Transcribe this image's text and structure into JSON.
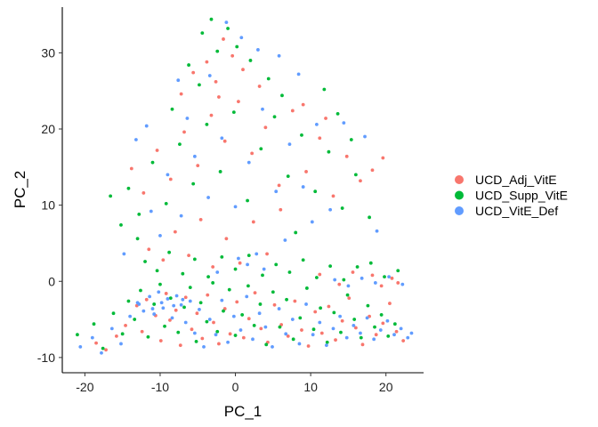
{
  "chart_data": {
    "type": "scatter",
    "xlabel": "PC_1",
    "ylabel": "PC_2",
    "xlim": [
      -23,
      25
    ],
    "ylim": [
      -12,
      36
    ],
    "xticks": [
      -20,
      -10,
      0,
      10,
      20
    ],
    "yticks": [
      -10,
      0,
      10,
      20,
      30
    ],
    "grid": false,
    "legend_position": "right",
    "series": [
      {
        "name": "UCD_Adj_VitE",
        "color": "#F8766D",
        "points": [
          [
            -18.5,
            -8.1
          ],
          [
            -17.2,
            -9.0
          ],
          [
            -15.8,
            -7.2
          ],
          [
            -14.6,
            -5.8
          ],
          [
            -13.1,
            -3.2
          ],
          [
            -12.4,
            -6.6
          ],
          [
            -11.8,
            -2.4
          ],
          [
            -10.6,
            -4.5
          ],
          [
            -9.9,
            -7.8
          ],
          [
            -9.2,
            -1.6
          ],
          [
            -8.7,
            -5.1
          ],
          [
            -7.9,
            -3.8
          ],
          [
            -7.3,
            -8.4
          ],
          [
            -6.6,
            -2.1
          ],
          [
            -5.8,
            -6.3
          ],
          [
            -5.1,
            -4.2
          ],
          [
            -4.4,
            -7.5
          ],
          [
            -3.7,
            -1.8
          ],
          [
            -2.9,
            -5.4
          ],
          [
            -2.2,
            -8.2
          ],
          [
            -1.4,
            -3.6
          ],
          [
            -0.7,
            -6.9
          ],
          [
            0.2,
            -2.7
          ],
          [
            1.1,
            -7.4
          ],
          [
            1.8,
            -4.9
          ],
          [
            2.6,
            -1.5
          ],
          [
            3.4,
            -6.2
          ],
          [
            4.3,
            -8.0
          ],
          [
            5.2,
            -3.1
          ],
          [
            6.1,
            -5.7
          ],
          [
            7.0,
            -7.2
          ],
          [
            7.9,
            -2.6
          ],
          [
            8.8,
            -6.4
          ],
          [
            9.7,
            -8.5
          ],
          [
            10.6,
            -4.0
          ],
          [
            11.5,
            -6.8
          ],
          [
            12.4,
            -3.3
          ],
          [
            13.3,
            -7.7
          ],
          [
            14.2,
            -5.2
          ],
          [
            15.1,
            -2.2
          ],
          [
            16.0,
            -6.1
          ],
          [
            16.9,
            -8.3
          ],
          [
            17.8,
            -4.6
          ],
          [
            18.7,
            -7.0
          ],
          [
            19.6,
            -5.5
          ],
          [
            20.5,
            -2.9
          ],
          [
            21.4,
            -6.6
          ],
          [
            22.3,
            -7.8
          ],
          [
            18.2,
            0.8
          ],
          [
            19.4,
            -0.6
          ],
          [
            20.8,
            0.4
          ],
          [
            21.6,
            -0.2
          ],
          [
            15.6,
            1.2
          ],
          [
            13.8,
            -0.4
          ],
          [
            11.2,
            0.9
          ],
          [
            -11.5,
            4.2
          ],
          [
            -9.6,
            2.8
          ],
          [
            -8.0,
            6.5
          ],
          [
            -6.2,
            3.4
          ],
          [
            -4.6,
            8.1
          ],
          [
            -3.0,
            1.9
          ],
          [
            -1.2,
            5.6
          ],
          [
            0.6,
            2.4
          ],
          [
            2.4,
            7.8
          ],
          [
            4.2,
            3.6
          ],
          [
            6.0,
            9.4
          ],
          [
            -13.8,
            14.8
          ],
          [
            -12.2,
            11.6
          ],
          [
            -10.4,
            17.2
          ],
          [
            -8.6,
            13.4
          ],
          [
            -6.8,
            19.6
          ],
          [
            -5.0,
            15.2
          ],
          [
            -3.2,
            21.8
          ],
          [
            -1.4,
            18.4
          ],
          [
            0.4,
            23.6
          ],
          [
            2.2,
            16.8
          ],
          [
            4.0,
            20.2
          ],
          [
            5.8,
            12.6
          ],
          [
            7.6,
            22.4
          ],
          [
            9.4,
            14.4
          ],
          [
            11.2,
            18.8
          ],
          [
            13.0,
            11.2
          ],
          [
            14.8,
            16.4
          ],
          [
            16.6,
            13.2
          ],
          [
            -5.6,
            27.4
          ],
          [
            -3.8,
            28.8
          ],
          [
            -2.6,
            26.2
          ],
          [
            -1.6,
            31.8
          ],
          [
            -0.4,
            29.6
          ],
          [
            1.0,
            27.8
          ],
          [
            -7.2,
            24.6
          ],
          [
            -2.2,
            24.2
          ],
          [
            3.2,
            25.6
          ],
          [
            9.0,
            23.2
          ],
          [
            12.0,
            21.4
          ],
          [
            18.2,
            14.6
          ],
          [
            19.6,
            16.2
          ]
        ]
      },
      {
        "name": "UCD_Supp_VitE",
        "color": "#00BA38",
        "points": [
          [
            -21.0,
            -7.0
          ],
          [
            -18.8,
            -5.6
          ],
          [
            -17.6,
            -8.8
          ],
          [
            -16.2,
            -4.2
          ],
          [
            -15.0,
            -6.9
          ],
          [
            -14.2,
            -2.6
          ],
          [
            -13.4,
            -5.0
          ],
          [
            -12.6,
            -1.2
          ],
          [
            -11.6,
            -7.3
          ],
          [
            -10.8,
            -3.0
          ],
          [
            -10.0,
            -0.4
          ],
          [
            -9.4,
            -5.9
          ],
          [
            -8.6,
            -2.2
          ],
          [
            -7.6,
            -6.7
          ],
          [
            -6.8,
            -3.4
          ],
          [
            -6.0,
            -0.8
          ],
          [
            -5.2,
            -7.9
          ],
          [
            -4.6,
            -2.8
          ],
          [
            -3.8,
            -5.3
          ],
          [
            -3.0,
            -0.2
          ],
          [
            -2.4,
            -6.6
          ],
          [
            -1.6,
            -3.9
          ],
          [
            -0.8,
            -1.1
          ],
          [
            0.0,
            -7.1
          ],
          [
            0.9,
            -4.4
          ],
          [
            1.7,
            -0.6
          ],
          [
            2.5,
            -5.8
          ],
          [
            3.3,
            -3.0
          ],
          [
            4.1,
            -8.3
          ],
          [
            5.0,
            -1.4
          ],
          [
            5.9,
            -6.0
          ],
          [
            6.8,
            -2.4
          ],
          [
            7.7,
            -7.6
          ],
          [
            8.6,
            -4.8
          ],
          [
            9.5,
            -0.9
          ],
          [
            10.4,
            -6.3
          ],
          [
            11.3,
            -3.5
          ],
          [
            12.2,
            -8.0
          ],
          [
            13.1,
            -4.1
          ],
          [
            14.0,
            -6.7
          ],
          [
            14.9,
            -1.8
          ],
          [
            15.8,
            -5.0
          ],
          [
            16.7,
            -7.4
          ],
          [
            17.6,
            -3.2
          ],
          [
            18.5,
            -6.0
          ],
          [
            19.4,
            -4.4
          ],
          [
            20.3,
            -7.2
          ],
          [
            21.2,
            -5.6
          ],
          [
            -12.0,
            2.6
          ],
          [
            -10.4,
            1.4
          ],
          [
            -8.8,
            3.8
          ],
          [
            -7.0,
            1.0
          ],
          [
            -5.4,
            2.9
          ],
          [
            -3.6,
            0.6
          ],
          [
            -1.8,
            3.2
          ],
          [
            0.0,
            1.6
          ],
          [
            1.8,
            3.4
          ],
          [
            3.6,
            0.8
          ],
          [
            5.4,
            2.2
          ],
          [
            7.2,
            1.2
          ],
          [
            9.0,
            2.8
          ],
          [
            10.8,
            0.5
          ],
          [
            12.6,
            2.0
          ],
          [
            14.4,
            0.2
          ],
          [
            16.2,
            1.9
          ],
          [
            18.0,
            2.4
          ],
          [
            19.8,
            0.6
          ],
          [
            21.6,
            1.4
          ],
          [
            -14.2,
            12.2
          ],
          [
            -12.8,
            8.8
          ],
          [
            -11.0,
            15.6
          ],
          [
            -9.2,
            10.2
          ],
          [
            -7.4,
            18.0
          ],
          [
            -5.6,
            12.8
          ],
          [
            -3.8,
            20.6
          ],
          [
            -2.0,
            14.4
          ],
          [
            -0.2,
            22.2
          ],
          [
            1.6,
            10.6
          ],
          [
            3.4,
            17.4
          ],
          [
            5.2,
            21.6
          ],
          [
            7.0,
            13.8
          ],
          [
            8.8,
            19.2
          ],
          [
            10.6,
            11.8
          ],
          [
            12.4,
            17.0
          ],
          [
            14.2,
            9.6
          ],
          [
            16.0,
            14.0
          ],
          [
            17.8,
            8.4
          ],
          [
            -16.6,
            11.2
          ],
          [
            -15.2,
            7.4
          ],
          [
            -4.4,
            32.6
          ],
          [
            -3.2,
            34.4
          ],
          [
            -2.4,
            30.2
          ],
          [
            -1.0,
            33.2
          ],
          [
            0.2,
            30.8
          ],
          [
            -6.2,
            28.4
          ],
          [
            -4.8,
            25.8
          ],
          [
            2.0,
            29.0
          ],
          [
            4.4,
            26.6
          ],
          [
            6.2,
            24.4
          ],
          [
            -8.4,
            22.6
          ],
          [
            11.8,
            25.2
          ],
          [
            13.6,
            22.0
          ],
          [
            15.4,
            18.6
          ],
          [
            -13.0,
            5.6
          ],
          [
            8.0,
            6.4
          ]
        ]
      },
      {
        "name": "UCD_VitE_Def",
        "color": "#619CFF",
        "points": [
          [
            -20.6,
            -8.6
          ],
          [
            -19.0,
            -7.4
          ],
          [
            -17.8,
            -9.4
          ],
          [
            -16.4,
            -6.2
          ],
          [
            -15.2,
            -8.2
          ],
          [
            -14.0,
            -4.6
          ],
          [
            -13.0,
            -2.8
          ],
          [
            -12.2,
            -3.9
          ],
          [
            -11.4,
            -2.0
          ],
          [
            -10.8,
            -4.3
          ],
          [
            -10.2,
            -1.4
          ],
          [
            -9.6,
            -3.5
          ],
          [
            -9.0,
            -2.3
          ],
          [
            -8.4,
            -4.8
          ],
          [
            -7.8,
            -1.9
          ],
          [
            -7.2,
            -3.1
          ],
          [
            -6.6,
            -5.4
          ],
          [
            -6.0,
            -2.6
          ],
          [
            -5.4,
            -6.8
          ],
          [
            -4.8,
            -3.7
          ],
          [
            -4.2,
            -8.6
          ],
          [
            -3.4,
            -5.0
          ],
          [
            -2.6,
            -7.0
          ],
          [
            -1.8,
            -2.5
          ],
          [
            -1.0,
            -8.0
          ],
          [
            -0.2,
            -4.6
          ],
          [
            0.7,
            -6.4
          ],
          [
            1.5,
            -2.0
          ],
          [
            2.3,
            -7.6
          ],
          [
            3.2,
            -4.2
          ],
          [
            4.0,
            -6.0
          ],
          [
            4.9,
            -8.6
          ],
          [
            5.8,
            -3.6
          ],
          [
            6.7,
            -6.9
          ],
          [
            7.6,
            -5.0
          ],
          [
            8.5,
            -8.2
          ],
          [
            9.4,
            -3.0
          ],
          [
            10.3,
            -7.0
          ],
          [
            11.2,
            -5.4
          ],
          [
            12.1,
            -8.4
          ],
          [
            13.0,
            -6.2
          ],
          [
            13.9,
            -4.6
          ],
          [
            14.8,
            -7.4
          ],
          [
            15.7,
            -5.8
          ],
          [
            16.6,
            -6.8
          ],
          [
            17.5,
            -4.8
          ],
          [
            18.4,
            -7.6
          ],
          [
            19.3,
            -6.4
          ],
          [
            20.2,
            -5.2
          ],
          [
            21.1,
            -7.0
          ],
          [
            22.0,
            -6.2
          ],
          [
            22.9,
            -7.4
          ],
          [
            23.4,
            -6.8
          ],
          [
            -12.8,
            -3.0
          ],
          [
            -11.0,
            -3.6
          ],
          [
            -9.8,
            -2.8
          ],
          [
            -8.2,
            -3.2
          ],
          [
            -7.0,
            -2.4
          ],
          [
            0.4,
            3.0
          ],
          [
            1.6,
            2.2
          ],
          [
            2.8,
            3.6
          ],
          [
            3.8,
            1.6
          ],
          [
            -2.4,
            1.2
          ],
          [
            13.2,
            0.2
          ],
          [
            15.0,
            -0.6
          ],
          [
            16.8,
            0.4
          ],
          [
            18.6,
            -0.2
          ],
          [
            20.4,
            0.6
          ],
          [
            22.2,
            -0.4
          ],
          [
            -11.2,
            9.2
          ],
          [
            -9.0,
            14.0
          ],
          [
            -7.2,
            8.6
          ],
          [
            -5.4,
            16.4
          ],
          [
            -3.6,
            11.0
          ],
          [
            -1.8,
            18.8
          ],
          [
            0.0,
            9.8
          ],
          [
            1.8,
            15.6
          ],
          [
            3.6,
            22.6
          ],
          [
            5.4,
            11.8
          ],
          [
            7.2,
            18.0
          ],
          [
            9.0,
            12.4
          ],
          [
            10.8,
            20.6
          ],
          [
            12.6,
            9.4
          ],
          [
            14.4,
            20.8
          ],
          [
            17.2,
            19.0
          ],
          [
            -13.2,
            18.6
          ],
          [
            -11.8,
            20.4
          ],
          [
            -7.6,
            26.4
          ],
          [
            -3.4,
            27.0
          ],
          [
            -1.2,
            34.0
          ],
          [
            0.8,
            32.0
          ],
          [
            3.0,
            30.4
          ],
          [
            5.8,
            29.6
          ],
          [
            8.4,
            27.2
          ],
          [
            -6.4,
            21.4
          ],
          [
            -14.8,
            3.6
          ],
          [
            -10.0,
            6.0
          ],
          [
            6.6,
            5.4
          ],
          [
            10.2,
            7.8
          ],
          [
            18.8,
            6.6
          ]
        ]
      }
    ]
  }
}
